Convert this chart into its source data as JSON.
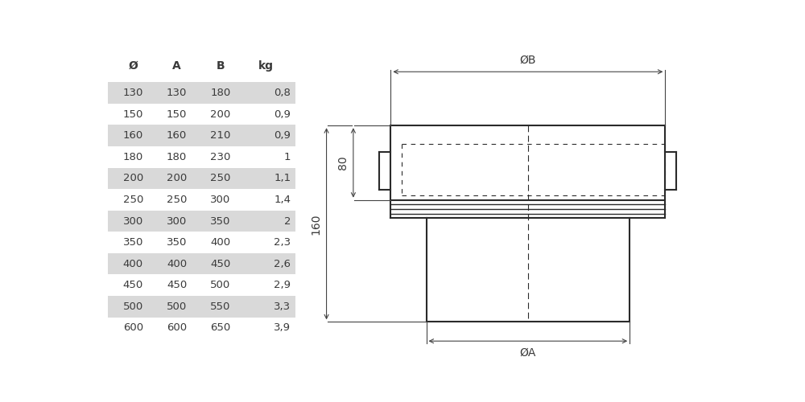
{
  "table_headers": [
    "Ø",
    "A",
    "B",
    "kg"
  ],
  "table_rows": [
    [
      "130",
      "130",
      "180",
      "0,8"
    ],
    [
      "150",
      "150",
      "200",
      "0,9"
    ],
    [
      "160",
      "160",
      "210",
      "0,9"
    ],
    [
      "180",
      "180",
      "230",
      "1"
    ],
    [
      "200",
      "200",
      "250",
      "1,1"
    ],
    [
      "250",
      "250",
      "300",
      "1,4"
    ],
    [
      "300",
      "300",
      "350",
      "2"
    ],
    [
      "350",
      "350",
      "400",
      "2,3"
    ],
    [
      "400",
      "400",
      "450",
      "2,6"
    ],
    [
      "450",
      "450",
      "500",
      "2,9"
    ],
    [
      "500",
      "500",
      "550",
      "3,3"
    ],
    [
      "600",
      "600",
      "650",
      "3,9"
    ]
  ],
  "shaded_rows": [
    0,
    2,
    4,
    6,
    8,
    10
  ],
  "row_bg_shaded": "#d9d9d9",
  "row_bg_white": "#ffffff",
  "text_color": "#3a3a3a",
  "line_color": "#2a2a2a",
  "dim_line_color": "#444444",
  "bg_color": "#ffffff"
}
